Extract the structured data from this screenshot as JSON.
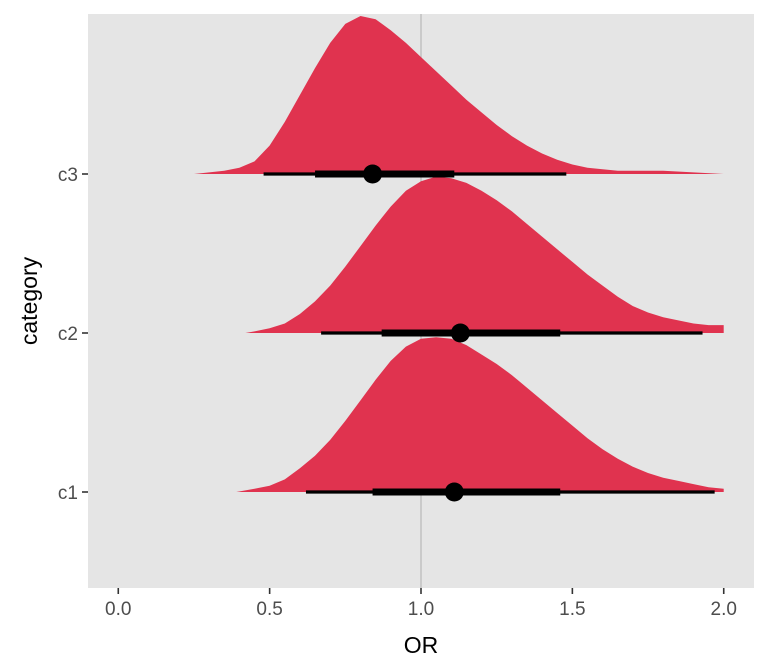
{
  "chart_data": {
    "type": "halfeye",
    "xlabel": "OR",
    "ylabel": "category",
    "xlim": [
      -0.1,
      2.1
    ],
    "xticks": [
      0.0,
      0.5,
      1.0,
      1.5,
      2.0
    ],
    "xtick_labels": [
      "0.0",
      "0.5",
      "1.0",
      "1.5",
      "2.0"
    ],
    "reference_line_x": 1.0,
    "grid": false,
    "legend": "none",
    "colors": {
      "panel_bg": "#e5e5e5",
      "fill": "#e0334f",
      "interval": "#000000",
      "reference_line": "#c3c3c3",
      "tick": "#333333"
    },
    "categories": [
      "c1",
      "c2",
      "c3"
    ],
    "series": [
      {
        "category": "c1",
        "point": 1.11,
        "interval_66": [
          0.84,
          1.46
        ],
        "interval_95": [
          0.62,
          1.97
        ],
        "density": [
          [
            0.39,
            0.0
          ],
          [
            0.45,
            0.02
          ],
          [
            0.5,
            0.04
          ],
          [
            0.55,
            0.08
          ],
          [
            0.6,
            0.15
          ],
          [
            0.65,
            0.23
          ],
          [
            0.7,
            0.33
          ],
          [
            0.75,
            0.45
          ],
          [
            0.8,
            0.58
          ],
          [
            0.85,
            0.71
          ],
          [
            0.9,
            0.83
          ],
          [
            0.95,
            0.92
          ],
          [
            1.0,
            0.97
          ],
          [
            1.05,
            0.98
          ],
          [
            1.1,
            0.97
          ],
          [
            1.15,
            0.93
          ],
          [
            1.2,
            0.87
          ],
          [
            1.25,
            0.81
          ],
          [
            1.3,
            0.74
          ],
          [
            1.35,
            0.66
          ],
          [
            1.4,
            0.58
          ],
          [
            1.45,
            0.5
          ],
          [
            1.5,
            0.42
          ],
          [
            1.55,
            0.34
          ],
          [
            1.6,
            0.27
          ],
          [
            1.65,
            0.21
          ],
          [
            1.7,
            0.16
          ],
          [
            1.75,
            0.12
          ],
          [
            1.8,
            0.09
          ],
          [
            1.85,
            0.07
          ],
          [
            1.9,
            0.05
          ],
          [
            1.95,
            0.03
          ],
          [
            2.0,
            0.02
          ]
        ]
      },
      {
        "category": "c2",
        "point": 1.13,
        "interval_66": [
          0.87,
          1.46
        ],
        "interval_95": [
          0.67,
          1.93
        ],
        "density": [
          [
            0.42,
            0.0
          ],
          [
            0.45,
            0.01
          ],
          [
            0.5,
            0.03
          ],
          [
            0.55,
            0.06
          ],
          [
            0.6,
            0.12
          ],
          [
            0.65,
            0.2
          ],
          [
            0.7,
            0.3
          ],
          [
            0.75,
            0.42
          ],
          [
            0.8,
            0.55
          ],
          [
            0.85,
            0.68
          ],
          [
            0.9,
            0.8
          ],
          [
            0.95,
            0.9
          ],
          [
            1.0,
            0.96
          ],
          [
            1.05,
            0.99
          ],
          [
            1.1,
            0.98
          ],
          [
            1.15,
            0.95
          ],
          [
            1.2,
            0.9
          ],
          [
            1.25,
            0.84
          ],
          [
            1.3,
            0.77
          ],
          [
            1.35,
            0.69
          ],
          [
            1.4,
            0.61
          ],
          [
            1.45,
            0.53
          ],
          [
            1.5,
            0.45
          ],
          [
            1.55,
            0.37
          ],
          [
            1.6,
            0.3
          ],
          [
            1.65,
            0.23
          ],
          [
            1.7,
            0.17
          ],
          [
            1.75,
            0.13
          ],
          [
            1.8,
            0.1
          ],
          [
            1.85,
            0.08
          ],
          [
            1.9,
            0.06
          ],
          [
            1.95,
            0.05
          ],
          [
            2.0,
            0.05
          ]
        ]
      },
      {
        "category": "c3",
        "point": 0.84,
        "interval_66": [
          0.65,
          1.11
        ],
        "interval_95": [
          0.48,
          1.48
        ],
        "density": [
          [
            0.25,
            0.0
          ],
          [
            0.3,
            0.01
          ],
          [
            0.35,
            0.02
          ],
          [
            0.4,
            0.04
          ],
          [
            0.45,
            0.08
          ],
          [
            0.5,
            0.18
          ],
          [
            0.55,
            0.33
          ],
          [
            0.6,
            0.5
          ],
          [
            0.65,
            0.67
          ],
          [
            0.7,
            0.83
          ],
          [
            0.75,
            0.95
          ],
          [
            0.8,
            1.0
          ],
          [
            0.85,
            0.98
          ],
          [
            0.9,
            0.91
          ],
          [
            0.95,
            0.83
          ],
          [
            1.0,
            0.74
          ],
          [
            1.05,
            0.65
          ],
          [
            1.1,
            0.56
          ],
          [
            1.15,
            0.47
          ],
          [
            1.2,
            0.39
          ],
          [
            1.25,
            0.31
          ],
          [
            1.3,
            0.24
          ],
          [
            1.35,
            0.18
          ],
          [
            1.4,
            0.13
          ],
          [
            1.45,
            0.09
          ],
          [
            1.5,
            0.06
          ],
          [
            1.55,
            0.04
          ],
          [
            1.6,
            0.03
          ],
          [
            1.65,
            0.02
          ],
          [
            1.7,
            0.02
          ],
          [
            1.8,
            0.02
          ],
          [
            1.9,
            0.01
          ],
          [
            2.0,
            0.0
          ]
        ]
      }
    ]
  }
}
